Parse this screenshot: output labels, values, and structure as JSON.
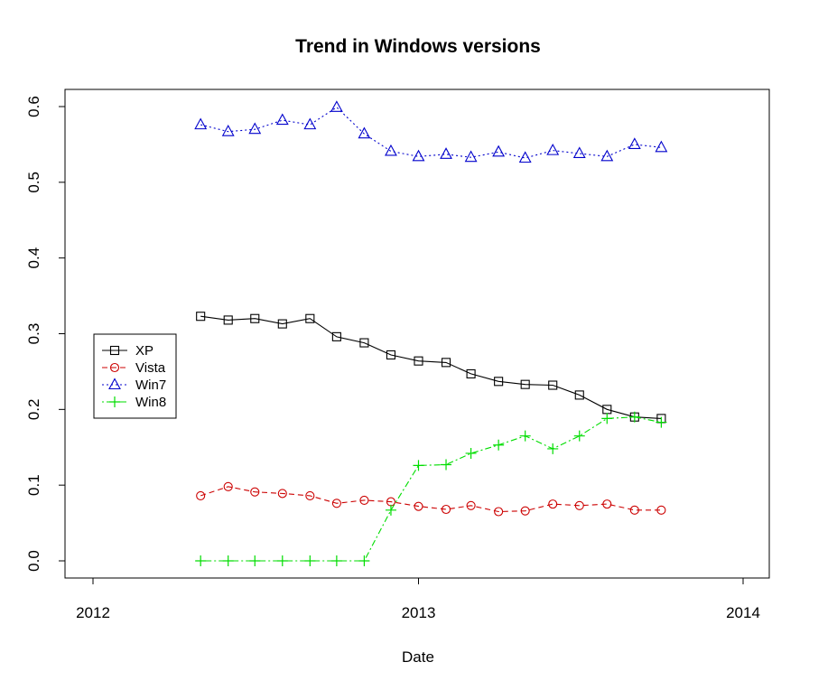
{
  "chart_data": {
    "type": "line",
    "title": "Trend in Windows versions",
    "xlabel": "Date",
    "ylabel": "",
    "xlim": [
      "2012-01-01",
      "2014-01-01"
    ],
    "ylim": [
      0.0,
      0.62
    ],
    "x_ticks": [
      "2012",
      "2013",
      "2014"
    ],
    "x_tick_dates": [
      "2012-01-01",
      "2013-01-01",
      "2014-01-01"
    ],
    "y_ticks": [
      "0.0",
      "0.1",
      "0.2",
      "0.3",
      "0.4",
      "0.5",
      "0.6"
    ],
    "y_tick_values": [
      0.0,
      0.1,
      0.2,
      0.3,
      0.4,
      0.5,
      0.6
    ],
    "grid": false,
    "legend_position": "left",
    "x": [
      "2012-05-01",
      "2012-06-01",
      "2012-07-01",
      "2012-08-01",
      "2012-09-01",
      "2012-10-01",
      "2012-11-01",
      "2012-12-01",
      "2013-01-01",
      "2013-02-01",
      "2013-03-01",
      "2013-04-01",
      "2013-05-01",
      "2013-06-01",
      "2013-07-01",
      "2013-08-01",
      "2013-09-01",
      "2013-10-01"
    ],
    "series": [
      {
        "name": "XP",
        "color": "#000000",
        "marker": "square",
        "line_style": "solid",
        "values": [
          0.323,
          0.318,
          0.32,
          0.313,
          0.32,
          0.296,
          0.288,
          0.272,
          0.264,
          0.262,
          0.247,
          0.237,
          0.233,
          0.232,
          0.219,
          0.2,
          0.19,
          0.188
        ]
      },
      {
        "name": "Vista",
        "color": "#cc0000",
        "marker": "circle",
        "line_style": "dashed",
        "values": [
          0.086,
          0.098,
          0.091,
          0.089,
          0.086,
          0.076,
          0.08,
          0.078,
          0.072,
          0.068,
          0.073,
          0.065,
          0.066,
          0.075,
          0.073,
          0.075,
          0.067,
          0.067
        ]
      },
      {
        "name": "Win7",
        "color": "#0000cc",
        "marker": "triangle",
        "line_style": "dotted",
        "values": [
          0.576,
          0.567,
          0.57,
          0.582,
          0.576,
          0.599,
          0.564,
          0.541,
          0.534,
          0.537,
          0.533,
          0.54,
          0.532,
          0.542,
          0.538,
          0.534,
          0.55,
          0.546
        ]
      },
      {
        "name": "Win8",
        "color": "#00dd00",
        "marker": "plus",
        "line_style": "dotdash",
        "values": [
          0.0,
          0.0,
          0.0,
          0.0,
          0.0,
          0.0,
          0.0,
          0.067,
          0.126,
          0.127,
          0.142,
          0.153,
          0.165,
          0.148,
          0.165,
          0.188,
          0.19,
          0.183
        ]
      }
    ]
  }
}
